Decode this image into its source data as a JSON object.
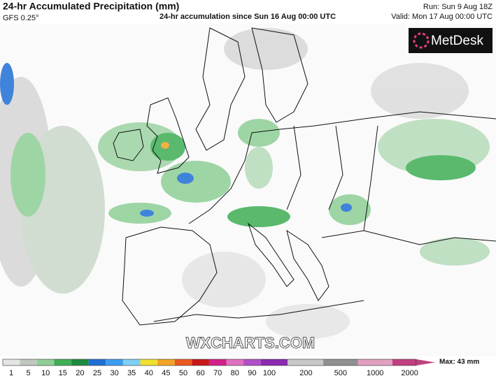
{
  "header": {
    "title": "24-hr Accumulated Precipitation (mm)",
    "model": "GFS 0.25°",
    "subtitle": "24-hr accumulation since Sun 16 Aug 00:00 UTC",
    "run": "Run: Sun 9 Aug 18Z",
    "valid": "Valid: Mon 17 Aug 00:00 UTC"
  },
  "logo": "MetDesk",
  "watermark": "WXCHARTS.COM",
  "legend": {
    "labels": [
      "1",
      "5",
      "10",
      "15",
      "20",
      "25",
      "30",
      "35",
      "40",
      "45",
      "50",
      "60",
      "70",
      "80",
      "90",
      "100",
      "200",
      "500",
      "1000",
      "2000"
    ],
    "colors": [
      "#e4e4e4",
      "#bfc7bf",
      "#8fcf97",
      "#3fae55",
      "#1e8a3c",
      "#1f6fd6",
      "#3c9cf0",
      "#7fd0f5",
      "#f0e030",
      "#f2a428",
      "#e85a20",
      "#c81818",
      "#d0208a",
      "#e070c0",
      "#b050c8",
      "#8a2ab0",
      "#c8c8c8",
      "#909090",
      "#e0a0c0",
      "#c04080"
    ],
    "max": "Max: 43 mm"
  }
}
